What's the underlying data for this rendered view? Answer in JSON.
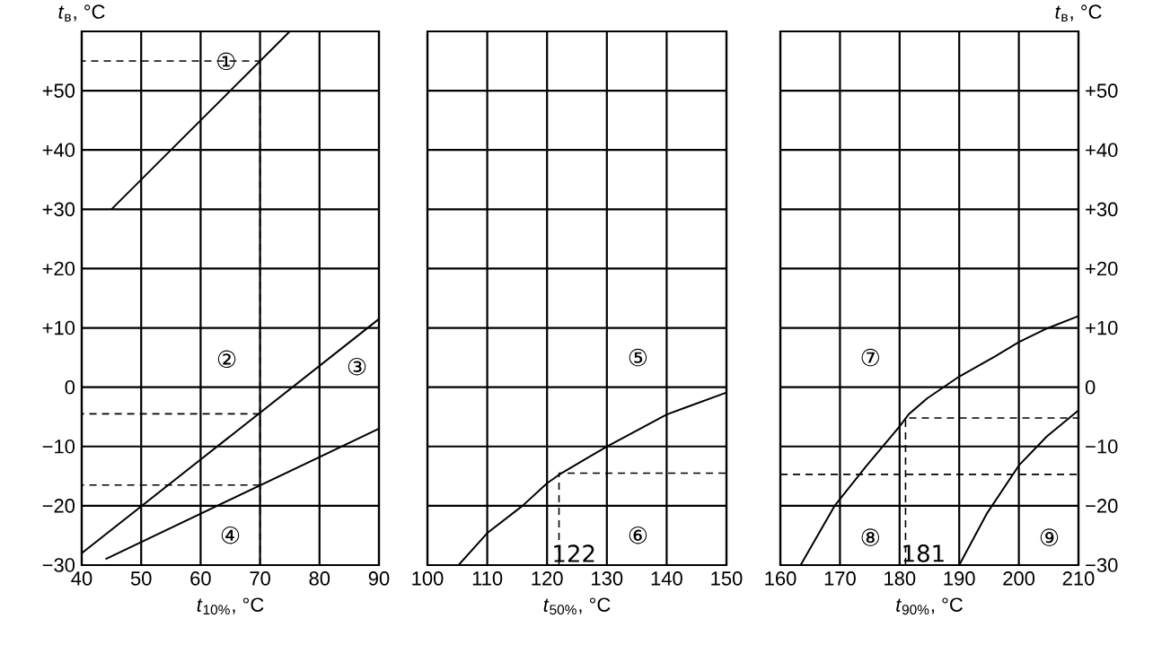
{
  "chart_data": [
    {
      "type": "line",
      "xlabel": "*t*$_{10%}$, °C",
      "ylabel": "*t*$_{в}$, °C",
      "grid": true,
      "xlim": [
        40,
        90
      ],
      "xticks": [
        40,
        50,
        60,
        70,
        80,
        90
      ],
      "ylim": [
        -30,
        60
      ],
      "yticks": [
        {
          "value": -30,
          "label": "−30"
        },
        {
          "value": -20,
          "label": "−20"
        },
        {
          "value": -10,
          "label": "−10"
        },
        0,
        {
          "value": 10,
          "label": "+10"
        },
        {
          "value": 20,
          "label": "+20"
        },
        {
          "value": 30,
          "label": "+30"
        },
        {
          "value": 40,
          "label": "+40"
        },
        {
          "value": 50,
          "label": "+50"
        },
        {
          "value": 60,
          "label": null
        }
      ],
      "series": [
        {
          "x": [
            45,
            75
          ],
          "values": [
            30,
            60
          ],
          "color": "#000000"
        },
        {
          "x": [
            40,
            90
          ],
          "values": [
            -28,
            11.5
          ],
          "color": "#000000"
        },
        {
          "x": [
            44,
            90
          ],
          "values": [
            -29,
            -7
          ],
          "color": "#000000"
        },
        {
          "x": [
            70,
            70,
            40
          ],
          "values": [
            -30,
            55,
            55
          ],
          "color": "#000000",
          "line_style": "dashed"
        },
        {
          "x": [
            70,
            40
          ],
          "values": [
            -4.5,
            -4.5
          ],
          "color": "#000000",
          "line_style": "dashed"
        },
        {
          "x": [
            70,
            40
          ],
          "values": [
            -16.5,
            -16.5
          ],
          "color": "#000000",
          "line_style": "dashed"
        }
      ],
      "annotations": [
        "①",
        "②",
        "③",
        "④"
      ]
    },
    {
      "type": "line",
      "xlabel": "*t*$_{50%}$, °C",
      "grid": true,
      "tick_labels": "x",
      "xlim": [
        100,
        150
      ],
      "xticks": [
        100,
        110,
        120,
        130,
        140,
        150
      ],
      "ylim": [
        -30,
        60
      ],
      "yticks": [
        -30,
        -20,
        -10,
        0,
        10,
        20,
        30,
        40,
        50,
        60
      ],
      "series": [
        {
          "x": [
            105.2,
            110,
            115.9,
            120,
            122.4,
            130,
            140,
            150
          ],
          "values": [
            -30,
            -24.6,
            -20,
            -16.2,
            -14.5,
            -10,
            -4.6,
            -0.9
          ],
          "color": "#000000"
        },
        {
          "x": [
            122,
            122,
            150
          ],
          "values": [
            -30,
            -14.5,
            -14.5
          ],
          "color": "#000000",
          "line_style": "dashed"
        }
      ],
      "annotations": [
        "⑤",
        "⑥",
        "122"
      ]
    },
    {
      "type": "line",
      "xlabel": "*t*$_{90%}$, °C",
      "y2label": "*t*$_{в}$, °C",
      "grid": true,
      "xlim": [
        160,
        210
      ],
      "xticks": [
        160,
        170,
        180,
        190,
        200,
        210
      ],
      "y2lim": [
        -30,
        60
      ],
      "y2ticks": [
        {
          "value": -30,
          "label": "−30"
        },
        {
          "value": -20,
          "label": "−20"
        },
        {
          "value": -10,
          "label": "−10"
        },
        0,
        {
          "value": 10,
          "label": "+10"
        },
        {
          "value": 20,
          "label": "+20"
        },
        {
          "value": 30,
          "label": "+30"
        },
        {
          "value": 40,
          "label": "+40"
        },
        {
          "value": 50,
          "label": "+50"
        },
        {
          "value": 60,
          "label": null
        }
      ],
      "series": [
        {
          "x": [
            163.4,
            169.1,
            174.5,
            180,
            181.5,
            184.6,
            190,
            196,
            200,
            204.7,
            210
          ],
          "values": [
            -30,
            -20,
            -13.2,
            -6.6,
            -4.6,
            -1.9,
            1.8,
            5.2,
            7.6,
            9.9,
            12
          ],
          "color": "#000000",
          "axis": "y2"
        },
        {
          "x": [
            190,
            194.7,
            200,
            204.7,
            210
          ],
          "values": [
            -30,
            -21.2,
            -13.2,
            -8.3,
            -3.9
          ],
          "color": "#000000",
          "axis": "y2"
        },
        {
          "x": [
            181,
            181,
            210
          ],
          "values": [
            -30,
            -5.2,
            -5.2
          ],
          "color": "#000000",
          "line_style": "dashed",
          "axis": "y2"
        },
        {
          "x": [
            160,
            210
          ],
          "values": [
            -14.7,
            -14.7
          ],
          "color": "#000000",
          "line_style": "dashed",
          "axis": "y2"
        }
      ],
      "annotations": [
        "⑦",
        "⑧",
        "⑨",
        "181"
      ]
    }
  ]
}
